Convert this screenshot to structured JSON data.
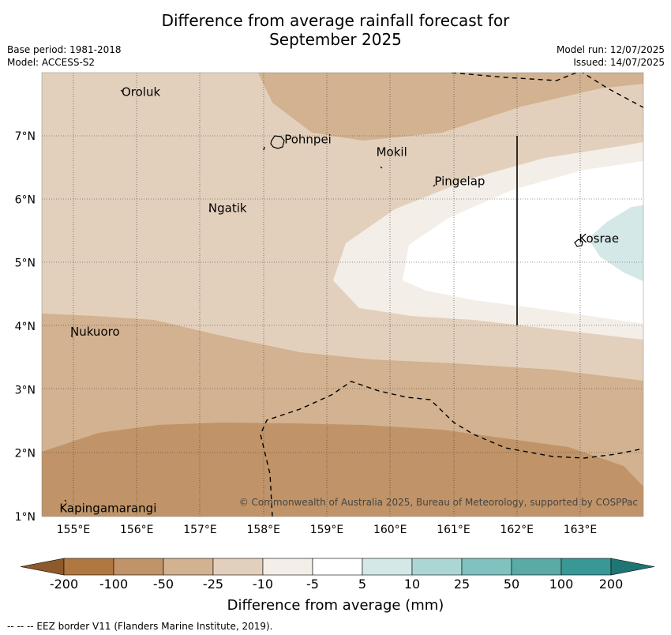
{
  "title": {
    "line1": "Difference from average rainfall forecast for",
    "line2": "September 2025"
  },
  "meta": {
    "base_period": "Base period: 1981-2018",
    "model": "Model: ACCESS-S2",
    "model_run": "Model run: 12/07/2025",
    "issued": "Issued: 14/07/2025"
  },
  "map": {
    "lon_ticks": [
      "155°E",
      "156°E",
      "157°E",
      "158°E",
      "159°E",
      "160°E",
      "161°E",
      "162°E",
      "163°E"
    ],
    "lat_ticks": [
      "7°N",
      "6°N",
      "5°N",
      "4°N",
      "3°N",
      "2°N",
      "1°N"
    ],
    "places": [
      {
        "name": "Oroluk",
        "lon": 155.76,
        "lat": 7.63
      },
      {
        "name": "Pohnpei",
        "lon": 158.33,
        "lat": 6.88
      },
      {
        "name": "Mokil",
        "lon": 159.78,
        "lat": 6.68
      },
      {
        "name": "Pingelap",
        "lon": 160.7,
        "lat": 6.22
      },
      {
        "name": "Ngatik",
        "lon": 157.13,
        "lat": 5.8
      },
      {
        "name": "Kosrae",
        "lon": 162.98,
        "lat": 5.32
      },
      {
        "name": "Nukuoro",
        "lon": 154.95,
        "lat": 3.85
      },
      {
        "name": "Kapingamarangi",
        "lon": 154.78,
        "lat": 1.07
      }
    ],
    "copyright": "© Commonwealth of Australia 2025, Bureau of Meteorology, supported by COSPPac"
  },
  "colorbar": {
    "labels": [
      "-200",
      "-100",
      "-50",
      "-25",
      "-10",
      "-5",
      "5",
      "10",
      "25",
      "50",
      "100",
      "200"
    ],
    "colors": [
      "#8c5a2b",
      "#b07840",
      "#c09468",
      "#d2b290",
      "#e3d0bc",
      "#f4eee8",
      "#ffffff",
      "#d4e8e7",
      "#acd6d4",
      "#80c2bf",
      "#5aaaa7",
      "#389896",
      "#1e7573"
    ],
    "title": "Difference from average (mm)"
  },
  "footnote": "--  --  -- EEZ border V11 (Flanders Marine Institute, 2019)."
}
